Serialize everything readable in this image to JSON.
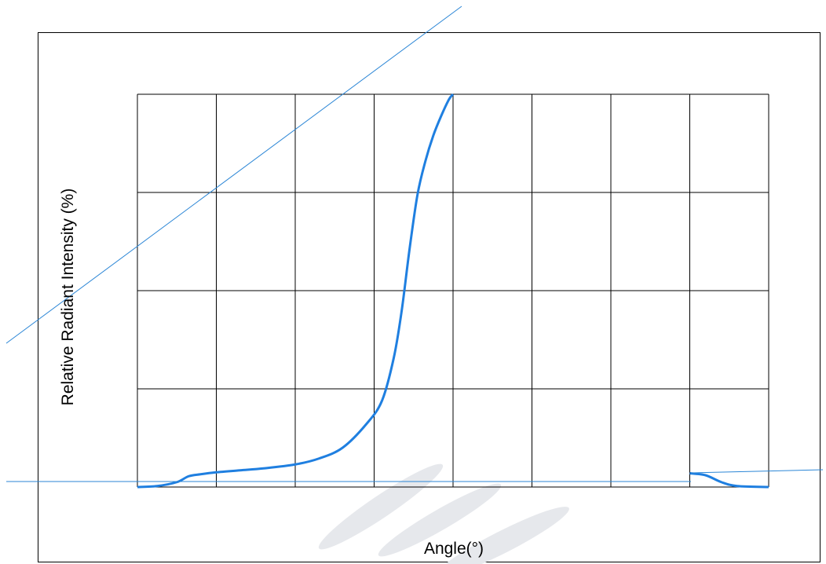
{
  "chart_data": {
    "type": "line",
    "title": "",
    "xlabel": "Angle(°)",
    "ylabel": "Relative Radiant Intensity (%)",
    "xlim": [
      0,
      8
    ],
    "ylim": [
      0,
      4
    ],
    "grid": true,
    "series": [
      {
        "color": "#1f7fe0",
        "segments": [
          {
            "x": [
              0,
              0.25,
              0.5,
              0.65,
              0.8,
              1.0,
              1.3,
              1.6,
              2.0,
              2.3,
              2.6,
              2.9,
              3.1,
              3.25,
              3.35,
              3.45,
              3.55,
              3.65,
              3.75,
              3.85,
              3.95,
              4.0
            ],
            "y": [
              0,
              0.01,
              0.05,
              0.11,
              0.13,
              0.15,
              0.17,
              0.19,
              0.23,
              0.29,
              0.4,
              0.64,
              0.88,
              1.32,
              1.8,
              2.43,
              2.98,
              3.32,
              3.58,
              3.78,
              3.95,
              4.0
            ]
          },
          {
            "x": [
              7.0,
              7.2,
              7.4,
              7.6,
              8.0
            ],
            "y": [
              0.14,
              0.12,
              0.05,
              0.01,
              0.0
            ]
          }
        ]
      }
    ]
  },
  "overlay_lines": {
    "color": "#2b86d6"
  }
}
